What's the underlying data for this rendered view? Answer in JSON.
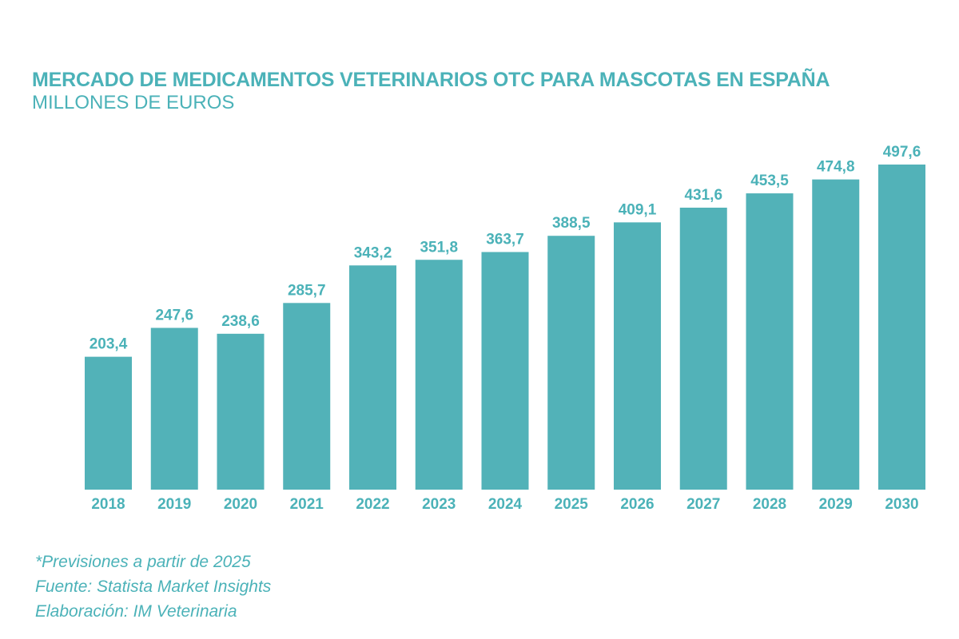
{
  "chart_data": {
    "type": "bar",
    "title": "MERCADO DE MEDICAMENTOS VETERINARIOS OTC PARA MASCOTAS EN ESPAÑA",
    "subtitle": "MILLONES DE EUROS",
    "categories": [
      "2018",
      "2019",
      "2020",
      "2021",
      "2022",
      "2023",
      "2024",
      "2025",
      "2026",
      "2027",
      "2028",
      "2029",
      "2030"
    ],
    "values": [
      203.4,
      247.6,
      238.6,
      285.7,
      343.2,
      351.8,
      363.7,
      388.5,
      409.1,
      431.6,
      453.5,
      474.8,
      497.6
    ],
    "value_labels": [
      "203,4",
      "247,6",
      "238,6",
      "285,7",
      "343,2",
      "351,8",
      "363,7",
      "388,5",
      "409,1",
      "431,6",
      "453,5",
      "474,8",
      "497,6"
    ],
    "xlabel": "",
    "ylabel": "",
    "ylim": [
      0,
      497.6
    ],
    "grid": false,
    "bar_color": "#52b2b8",
    "text_color": "#4bb2b8"
  },
  "notes": [
    "*Previsiones a partir de 2025",
    "Fuente: Statista Market Insights",
    "Elaboración: IM Veterinaria"
  ]
}
